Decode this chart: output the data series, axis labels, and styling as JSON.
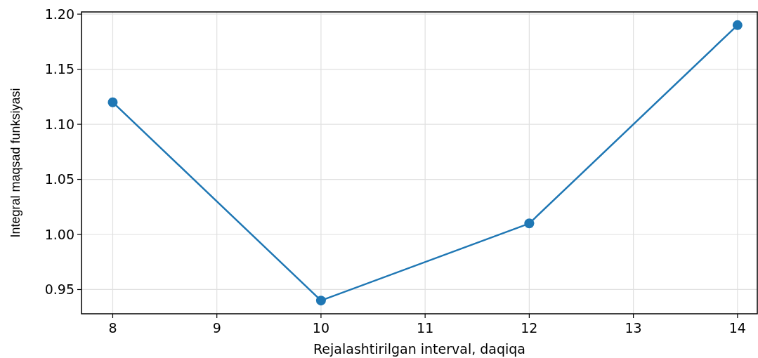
{
  "chart_data": {
    "type": "line",
    "xlabel": "Rejalashtirilgan interval, daqiqa",
    "ylabel": "Integral maqsad funksiyasi",
    "x": [
      8,
      10,
      12,
      14
    ],
    "series": [
      {
        "color": "#1f77b4",
        "values": [
          1.12,
          0.94,
          1.01,
          1.19
        ]
      }
    ],
    "xlim": [
      7.7,
      14.19
    ],
    "xticks": [
      8,
      9,
      10,
      11,
      12,
      13,
      14
    ],
    "ylim": [
      0.928,
      1.202
    ],
    "yticks": [
      {
        "value": 0.95,
        "label": "0.95"
      },
      {
        "value": 1.0,
        "label": "1.00"
      },
      {
        "value": 1.05,
        "label": "1.05"
      },
      {
        "value": 1.1,
        "label": "1.10"
      },
      {
        "value": 1.15,
        "label": "1.15"
      },
      {
        "value": 1.2,
        "label": "1.20"
      }
    ],
    "grid": true,
    "marker": "circle",
    "line_style": "solid"
  }
}
